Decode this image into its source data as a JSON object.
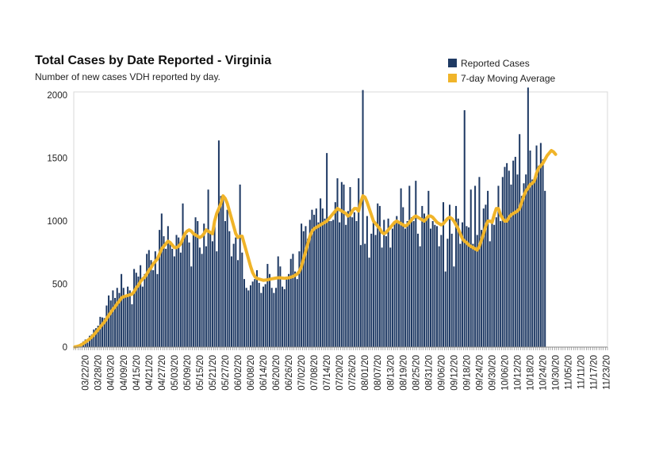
{
  "chart_data": {
    "type": "bar",
    "title": "Total Cases by Date Reported - Virginia",
    "subtitle": "Number of new cases VDH reported by day.",
    "xlabel": "",
    "ylabel": "",
    "ylim": [
      0,
      2000
    ],
    "y_ticks": [
      0,
      500,
      1000,
      1500,
      2000
    ],
    "legend_position": "top-right",
    "grid": false,
    "x_tick_labels": [
      "03/22/20",
      "03/28/20",
      "04/03/20",
      "04/09/20",
      "04/15/20",
      "04/21/20",
      "04/27/20",
      "05/03/20",
      "05/09/20",
      "05/15/20",
      "05/21/20",
      "05/27/20",
      "06/02/20",
      "06/08/20",
      "06/14/20",
      "06/20/20",
      "06/26/20",
      "07/02/20",
      "07/08/20",
      "07/14/20",
      "07/20/20",
      "07/26/20",
      "08/01/20",
      "08/07/20",
      "08/13/20",
      "08/19/20",
      "08/25/20",
      "08/31/20",
      "09/06/20",
      "09/12/20",
      "09/18/20",
      "09/24/20",
      "09/30/20",
      "10/06/20",
      "10/12/20",
      "10/18/20",
      "10/24/20",
      "10/30/20",
      "11/05/20",
      "11/11/20",
      "11/17/20",
      "11/23/20"
    ],
    "x_start": "03/17/20",
    "series": [
      {
        "name": "Reported Cases",
        "color": "#1f3a64",
        "values": [
          0,
          5,
          15,
          30,
          45,
          60,
          35,
          90,
          100,
          140,
          150,
          170,
          240,
          235,
          230,
          330,
          410,
          370,
          450,
          390,
          470,
          430,
          580,
          470,
          410,
          480,
          450,
          340,
          620,
          590,
          560,
          650,
          480,
          580,
          740,
          770,
          690,
          610,
          760,
          580,
          930,
          1060,
          880,
          780,
          960,
          840,
          780,
          720,
          890,
          870,
          750,
          1140,
          900,
          890,
          830,
          640,
          910,
          1030,
          1000,
          790,
          740,
          980,
          800,
          1250,
          910,
          840,
          1010,
          760,
          1640,
          1200,
          1180,
          1000,
          1090,
          920,
          720,
          820,
          870,
          690,
          1290,
          750,
          540,
          470,
          450,
          490,
          520,
          540,
          610,
          510,
          430,
          480,
          500,
          660,
          580,
          470,
          430,
          470,
          720,
          640,
          480,
          460,
          540,
          580,
          700,
          740,
          600,
          540,
          760,
          980,
          920,
          960,
          860,
          1010,
          1090,
          1050,
          1100,
          990,
          1180,
          1100,
          1020,
          1540,
          1000,
          1000,
          1010,
          1150,
          1340,
          990,
          1310,
          1290,
          970,
          1080,
          1270,
          1030,
          1070,
          1000,
          1340,
          810,
          2040,
          820,
          1040,
          710,
          900,
          1000,
          890,
          1140,
          1120,
          790,
          1010,
          880,
          1020,
          790,
          940,
          990,
          1040,
          980,
          1260,
          1110,
          940,
          1000,
          1280,
          1030,
          1000,
          1320,
          900,
          800,
          1120,
          1060,
          1030,
          1240,
          940,
          1000,
          970,
          960,
          800,
          890,
          1150,
          600,
          860,
          1130,
          900,
          640,
          1120,
          1020,
          820,
          990,
          1880,
          960,
          950,
          1250,
          820,
          1280,
          890,
          1350,
          930,
          1100,
          1130,
          1240,
          840,
          1000,
          970,
          1030,
          1280,
          1000,
          1350,
          1430,
          1460,
          1400,
          1290,
          1480,
          1510,
          1370,
          1690,
          1200,
          1300,
          1370,
          2060,
          1560,
          1330,
          1310,
          1600,
          1440,
          1620,
          1490,
          1240
        ]
      },
      {
        "name": "7-day Moving Average",
        "color": "#f0b429",
        "values": [
          2,
          5,
          10,
          18,
          28,
          40,
          52,
          65,
          80,
          98,
          118,
          138,
          160,
          180,
          200,
          225,
          252,
          275,
          300,
          320,
          345,
          365,
          390,
          400,
          405,
          410,
          415,
          420,
          440,
          470,
          490,
          520,
          540,
          555,
          580,
          610,
          630,
          660,
          680,
          700,
          740,
          780,
          800,
          820,
          840,
          830,
          810,
          790,
          790,
          800,
          820,
          860,
          900,
          920,
          930,
          920,
          900,
          890,
          880,
          870,
          880,
          900,
          930,
          920,
          910,
          900,
          1000,
          1060,
          1100,
          1140,
          1200,
          1180,
          1140,
          1080,
          1020,
          960,
          900,
          870,
          880,
          880,
          820,
          760,
          700,
          640,
          590,
          560,
          545,
          540,
          535,
          530,
          532,
          534,
          538,
          542,
          545,
          548,
          550,
          550,
          548,
          546,
          548,
          550,
          555,
          560,
          570,
          580,
          600,
          640,
          700,
          760,
          820,
          880,
          920,
          940,
          950,
          960,
          970,
          980,
          990,
          1000,
          1020,
          1040,
          1060,
          1080,
          1100,
          1090,
          1080,
          1070,
          1060,
          1040,
          1050,
          1080,
          1100,
          1100,
          1080,
          1150,
          1200,
          1190,
          1150,
          1100,
          1050,
          1000,
          980,
          960,
          940,
          910,
          900,
          910,
          930,
          950,
          970,
          990,
          1000,
          990,
          980,
          970,
          960,
          970,
          990,
          1010,
          1030,
          1040,
          1030,
          1020,
          1010,
          1000,
          1020,
          1040,
          1040,
          1030,
          1010,
          990,
          980,
          970,
          980,
          1000,
          1020,
          1030,
          1020,
          1000,
          970,
          940,
          900,
          860,
          840,
          830,
          810,
          800,
          790,
          780,
          770,
          800,
          850,
          900,
          960,
          1000,
          1000,
          990,
          1050,
          1100,
          1100,
          1050,
          1020,
          1000,
          1000,
          1030,
          1050,
          1060,
          1070,
          1080,
          1100,
          1150,
          1200,
          1240,
          1260,
          1290,
          1300,
          1320,
          1380,
          1420,
          1440,
          1460,
          1490,
          1520,
          1540,
          1560,
          1550,
          1530
        ]
      }
    ]
  }
}
